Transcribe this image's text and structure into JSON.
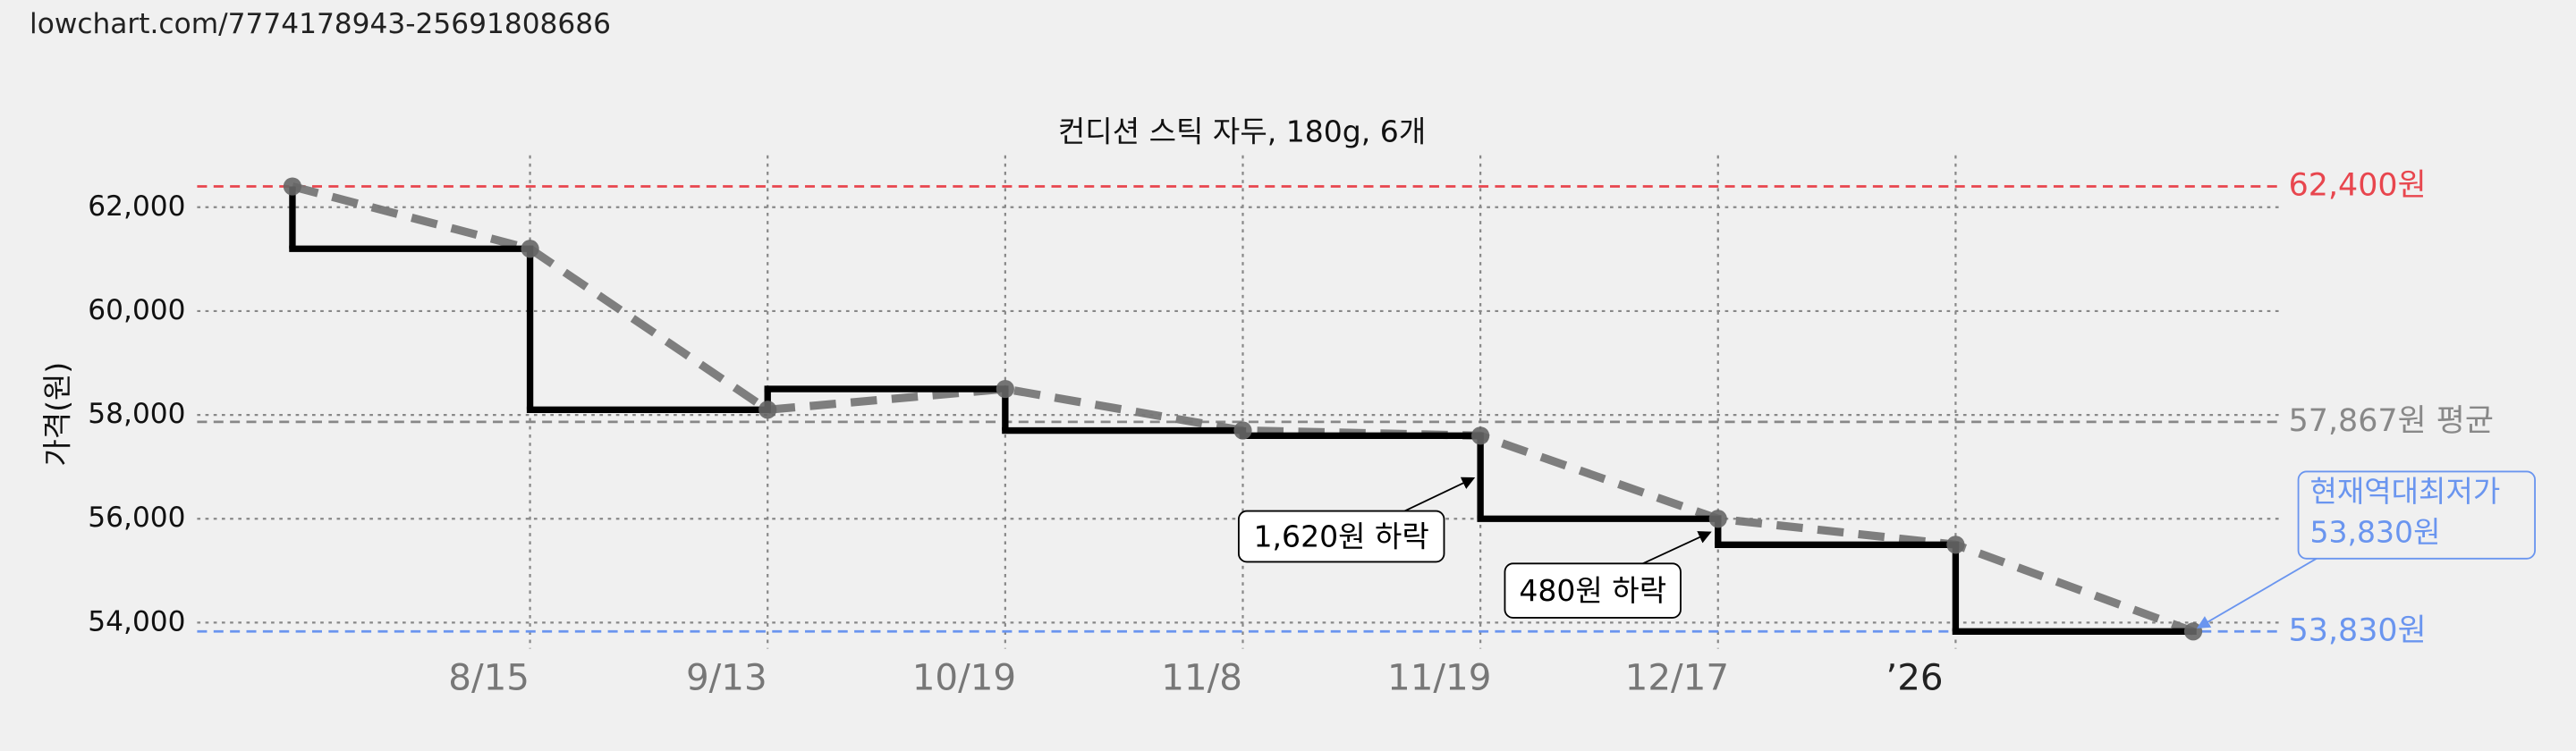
{
  "url": "lowchart.com/7774178943-25691808686",
  "chart_data": {
    "type": "step-line",
    "title": "컨디션 스틱 자두, 180g, 6개",
    "y_label": "가격(원)",
    "categories": [
      null,
      "8/15",
      "9/13",
      "10/19",
      "11/8",
      "11/19",
      "12/17",
      "’26",
      null
    ],
    "series": [
      {
        "color": "#000000",
        "values": [
          62400,
          61200,
          58100,
          58500,
          57700,
          57600,
          56000,
          55500,
          53830
        ]
      }
    ],
    "trend_color": "#777777",
    "ylim": [
      53500,
      63000
    ],
    "yticks": [
      {
        "value": 54000,
        "label": "54,000"
      },
      {
        "value": 56000,
        "label": "56,000"
      },
      {
        "value": 58000,
        "label": "58,000"
      },
      {
        "value": 60000,
        "label": "60,000"
      },
      {
        "value": 62000,
        "label": "62,000"
      }
    ],
    "grid": true,
    "reference_lines": [
      {
        "value": 62400,
        "label": "62,400원",
        "color": "#e8464e"
      },
      {
        "value": 57867,
        "label": "57,867원 평균",
        "color": "#888888"
      },
      {
        "value": 53830,
        "label": "53,830원",
        "color": "#6a95ef"
      }
    ],
    "annotations": [
      "1,620원 하락",
      "480원 하락"
    ],
    "callout": [
      "현재역대최저가",
      "53,830원"
    ]
  }
}
